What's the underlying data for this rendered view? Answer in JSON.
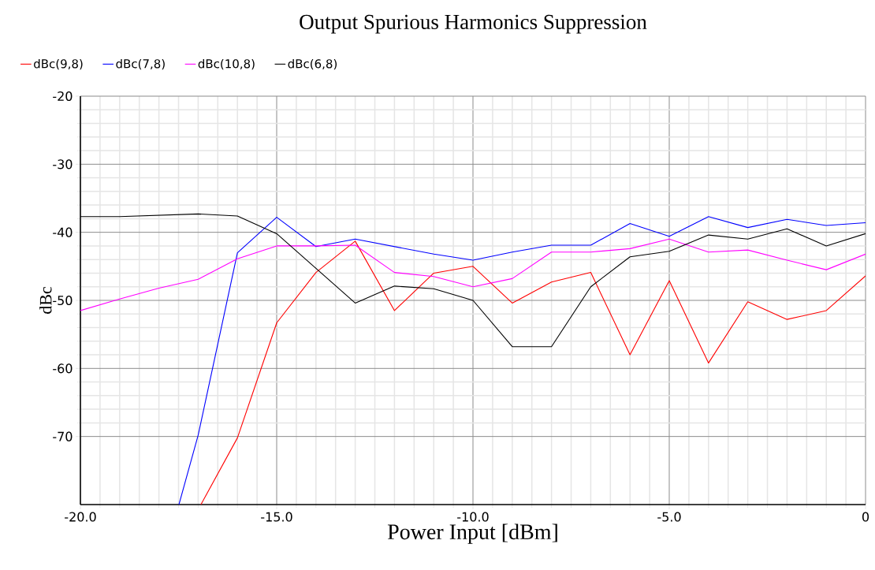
{
  "chart_data": {
    "type": "line",
    "title": "Output Spurious Harmonics Suppression",
    "xlabel": "Power Input [dBm]",
    "ylabel": "dBc",
    "x": [
      -20,
      -19,
      -18,
      -17,
      -16,
      -15,
      -14,
      -13,
      -12,
      -11,
      -10,
      -9,
      -8,
      -7,
      -6,
      -5,
      -4,
      -3,
      -2,
      -1,
      0
    ],
    "series": [
      {
        "name": "dBc(9,8)",
        "color": "#ff0000",
        "x": [
          -16.93,
          -16,
          -15,
          -14,
          -13,
          -12,
          -11,
          -10,
          -9,
          -8,
          -7,
          -6,
          -5,
          -4,
          -3,
          -2,
          -1,
          0
        ],
        "values": [
          -80,
          -70.2,
          -53.3,
          -45.9,
          -41.3,
          -51.5,
          -46.0,
          -45.0,
          -50.4,
          -47.3,
          -45.9,
          -58.0,
          -47.1,
          -59.2,
          -50.2,
          -52.8,
          -51.5,
          -46.4
        ]
      },
      {
        "name": "dBc(7,8)",
        "color": "#0000ff",
        "x": [
          -17.49,
          -17,
          -16,
          -15,
          -14,
          -13,
          -12,
          -11,
          -10,
          -9,
          -8,
          -7,
          -6,
          -5,
          -4,
          -3,
          -2,
          -1,
          0
        ],
        "values": [
          -80,
          -69.8,
          -43.0,
          -37.8,
          -42.1,
          -41.0,
          -42.1,
          -43.2,
          -44.1,
          -42.9,
          -41.9,
          -41.9,
          -38.7,
          -40.6,
          -37.7,
          -39.3,
          -38.1,
          -39.0,
          -38.6
        ]
      },
      {
        "name": "dBc(10,8)",
        "color": "#ff00ff",
        "values": [
          -51.5,
          -49.8,
          -48.2,
          -46.9,
          -43.9,
          -42.0,
          -42.0,
          -41.9,
          -45.9,
          -46.5,
          -48.0,
          -46.8,
          -42.9,
          -42.9,
          -42.4,
          -41.0,
          -42.9,
          -42.6,
          -44.1,
          -45.5,
          -43.2
        ]
      },
      {
        "name": "dBc(6,8)",
        "color": "#000000",
        "values": [
          -37.7,
          -37.7,
          -37.5,
          -37.3,
          -37.6,
          -40.2,
          -45.3,
          -50.4,
          -47.9,
          -48.3,
          -50.0,
          -56.8,
          -56.8,
          -48.0,
          -43.6,
          -42.8,
          -40.4,
          -41.0,
          -39.5,
          -42.0,
          -40.2
        ]
      }
    ],
    "xlim": [
      -20,
      0
    ],
    "ylim": [
      -80,
      -20
    ],
    "xticks": [
      {
        "value": -20,
        "label": "-20.0"
      },
      {
        "value": -15,
        "label": "-15.0"
      },
      {
        "value": -10,
        "label": "-10.0"
      },
      {
        "value": -5,
        "label": "-5.0"
      },
      0
    ],
    "yticks": [
      -70,
      -60,
      -50,
      -40,
      -30,
      -20
    ],
    "grid": true,
    "legend": "top left",
    "marker": "none",
    "line_style": "solid"
  }
}
